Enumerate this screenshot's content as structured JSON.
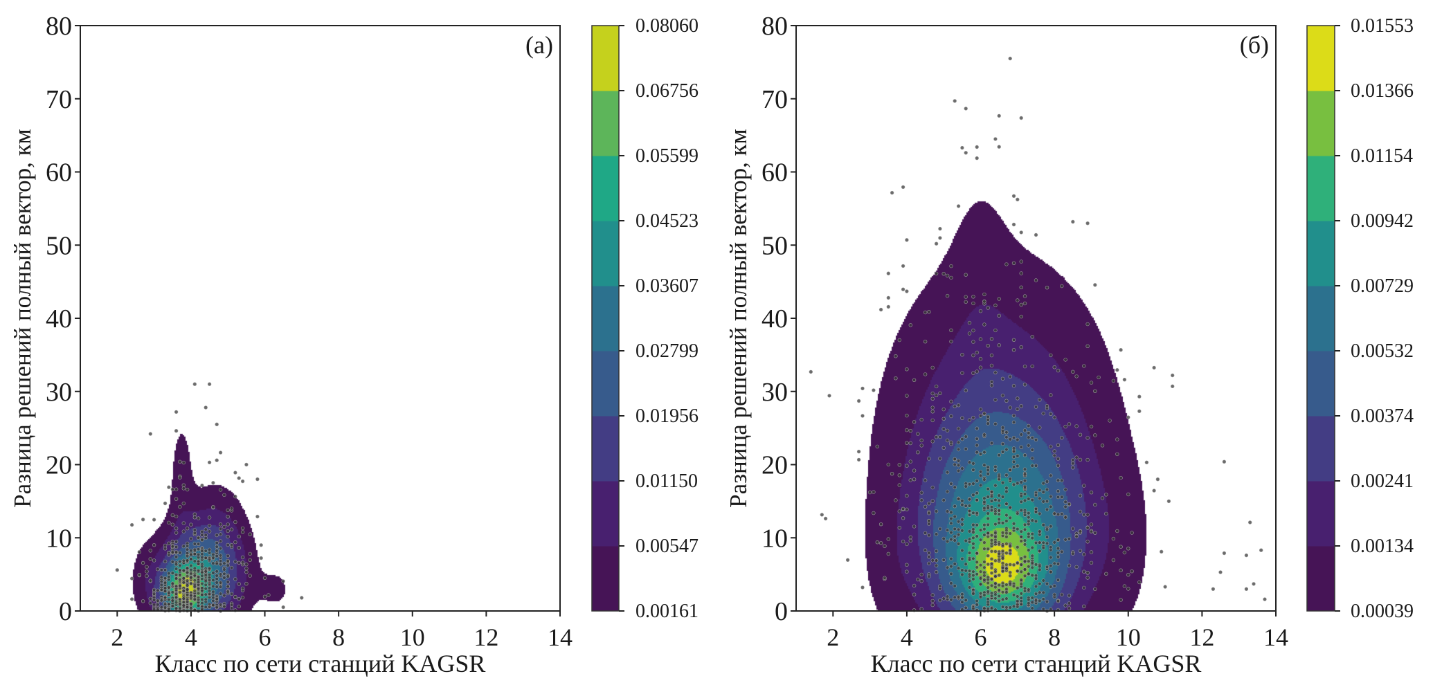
{
  "chart_data": [
    {
      "type": "scatter+density-contour",
      "panel_label": "(a)",
      "xlabel": "Класс по сети станций KAGSR",
      "ylabel": "Разница решений полный вектор, км",
      "xlim": [
        1,
        14
      ],
      "ylim": [
        0,
        80
      ],
      "xticks": [
        "2",
        "4",
        "6",
        "8",
        "10",
        "12",
        "14"
      ],
      "yticks": [
        "0",
        "10",
        "20",
        "30",
        "40",
        "50",
        "60",
        "70",
        "80"
      ],
      "colorbar_levels": [
        "0.00161",
        "0.00547",
        "0.01150",
        "0.01956",
        "0.02799",
        "0.03607",
        "0.04523",
        "0.05599",
        "0.06756",
        "0.08060"
      ],
      "band_colors": [
        "#461456",
        "#48206f",
        "#433d84",
        "#375b8c",
        "#2c718e",
        "#218f8c",
        "#1fa886",
        "#5db55a",
        "#c5d11d"
      ],
      "point_color": "#3a3a3a",
      "density_model": [
        {
          "x": 3.8,
          "y": 2.5,
          "sx": 0.38,
          "sy": 2.6,
          "w": 1.0
        },
        {
          "x": 4.3,
          "y": 5.0,
          "sx": 0.6,
          "sy": 4.0,
          "w": 0.55
        },
        {
          "x": 3.75,
          "y": 17.0,
          "sx": 0.22,
          "sy": 6.5,
          "w": 0.05
        },
        {
          "x": 4.7,
          "y": 9.0,
          "sx": 0.5,
          "sy": 5.0,
          "w": 0.09
        },
        {
          "x": 6.3,
          "y": 3.0,
          "sx": 0.35,
          "sy": 2.2,
          "w": 0.035
        },
        {
          "x": 2.8,
          "y": 4.0,
          "sx": 0.3,
          "sy": 3.5,
          "w": 0.05
        }
      ],
      "point_count": 620,
      "outliers": [
        [
          2.0,
          5.6
        ],
        [
          2.9,
          24.2
        ],
        [
          4.1,
          31.0
        ],
        [
          4.5,
          31.0
        ],
        [
          4.4,
          27.8
        ],
        [
          4.7,
          25.5
        ],
        [
          4.7,
          20.6
        ],
        [
          4.5,
          20.3
        ],
        [
          5.5,
          20.0
        ],
        [
          5.2,
          18.9
        ],
        [
          5.8,
          18.0
        ],
        [
          5.8,
          12.9
        ],
        [
          3.6,
          27.2
        ],
        [
          7.0,
          1.8
        ],
        [
          2.7,
          12.5
        ]
      ]
    },
    {
      "type": "scatter+density-contour",
      "panel_label": "(б)",
      "xlabel": "Класс по сети станций KAGSR",
      "ylabel": "Разница решений полный вектор, км",
      "xlim": [
        1,
        14
      ],
      "ylim": [
        0,
        80
      ],
      "xticks": [
        "2",
        "4",
        "6",
        "8",
        "10",
        "12",
        "14"
      ],
      "yticks": [
        "0",
        "10",
        "20",
        "30",
        "40",
        "50",
        "60",
        "70",
        "80"
      ],
      "colorbar_levels": [
        "0.00039",
        "0.00134",
        "0.00241",
        "0.00374",
        "0.00532",
        "0.00729",
        "0.00942",
        "0.01154",
        "0.01366",
        "0.01553"
      ],
      "band_colors": [
        "#461456",
        "#48206f",
        "#433d84",
        "#375b8c",
        "#2c718e",
        "#218f8c",
        "#2fb07a",
        "#78bf40",
        "#dcdc18"
      ],
      "point_color": "#3a3a3a",
      "density_model": [
        {
          "x": 6.6,
          "y": 5.5,
          "sx": 0.75,
          "sy": 4.0,
          "w": 1.0
        },
        {
          "x": 6.6,
          "y": 10.0,
          "sx": 1.3,
          "sy": 9.0,
          "w": 0.9
        },
        {
          "x": 6.5,
          "y": 22.0,
          "sx": 1.7,
          "sy": 14.0,
          "w": 0.35
        },
        {
          "x": 6.0,
          "y": 45.0,
          "sx": 0.55,
          "sy": 12.0,
          "w": 0.05
        },
        {
          "x": 9.8,
          "y": 8.0,
          "sx": 0.6,
          "sy": 8.0,
          "w": 0.05
        },
        {
          "x": 3.6,
          "y": 6.0,
          "sx": 0.5,
          "sy": 6.0,
          "w": 0.04
        },
        {
          "x": 13.2,
          "y": 5.8,
          "sx": 0.13,
          "sy": 1.4,
          "w": 0.006
        }
      ],
      "point_count": 980,
      "outliers": [
        [
          6.8,
          75.5
        ],
        [
          6.4,
          64.5
        ],
        [
          5.5,
          63.3
        ],
        [
          5.9,
          63.4
        ],
        [
          3.5,
          42.8
        ],
        [
          4.5,
          40.8
        ],
        [
          3.7,
          31.8
        ],
        [
          8.2,
          44.4
        ],
        [
          8.9,
          39.2
        ],
        [
          9.0,
          31.2
        ],
        [
          10.3,
          27.3
        ],
        [
          11.2,
          32.2
        ],
        [
          10.5,
          20.3
        ],
        [
          11.1,
          15.0
        ],
        [
          10.9,
          8.1
        ],
        [
          11.0,
          3.3
        ],
        [
          12.6,
          20.4
        ],
        [
          12.3,
          3.0
        ],
        [
          12.5,
          5.3
        ],
        [
          12.6,
          7.9
        ],
        [
          13.3,
          12.1
        ],
        [
          13.6,
          8.3
        ],
        [
          13.4,
          3.7
        ],
        [
          13.2,
          3.0
        ],
        [
          13.7,
          1.6
        ],
        [
          13.2,
          7.6
        ]
      ]
    }
  ]
}
